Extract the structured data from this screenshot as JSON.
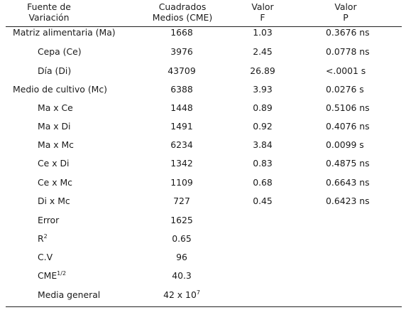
{
  "header": {
    "col1_line1": "Fuente de",
    "col1_line2": "Variación",
    "col2_line1": "Cuadrados",
    "col2_line2": "Medios (CME)",
    "col3_line1": "Valor",
    "col3_line2": "F",
    "col4_line1": "Valor",
    "col4_line2": "P"
  },
  "rows": [
    {
      "label": "Matriz alimentaria (Ma)",
      "cme": "1668",
      "f": "1.03",
      "p": "0.3676 ns"
    },
    {
      "label": "Cepa (Ce)",
      "cme": "3976",
      "f": "2.45",
      "p": "0.0778 ns"
    },
    {
      "label": "Día (Di)",
      "cme": "43709",
      "f": "26.89",
      "p": "<.0001 s"
    },
    {
      "label": "Medio de cultivo (Mc)",
      "cme": "6388",
      "f": "3.93",
      "p": "0.0276 s"
    },
    {
      "label": "Ma x Ce",
      "cme": "1448",
      "f": "0.89",
      "p": "0.5106 ns"
    },
    {
      "label": "Ma x Di",
      "cme": "1491",
      "f": "0.92",
      "p": "0.4076 ns"
    },
    {
      "label": "Ma x Mc",
      "cme": "6234",
      "f": "3.84",
      "p": "0.0099 s"
    },
    {
      "label": "Ce x Di",
      "cme": "1342",
      "f": "0.83",
      "p": "0.4875 ns"
    },
    {
      "label": "Ce x Mc",
      "cme": "1109",
      "f": "0.68",
      "p": "0.6643 ns"
    },
    {
      "label": "Di x Mc",
      "cme": "727",
      "f": "0.45",
      "p": "0.6423 ns"
    }
  ],
  "stats": {
    "error_label": "Error",
    "error_value": "1625",
    "r2_base": "R",
    "r2_sup": "2",
    "r2_value": "0.65",
    "cv_label": "C.V",
    "cv_value": "96",
    "cme_half_base": "CME",
    "cme_half_sup": "1/2",
    "cme_half_value": "40.3",
    "media_label": "Media general",
    "media_base": "42 x 10",
    "media_sup": "7"
  }
}
